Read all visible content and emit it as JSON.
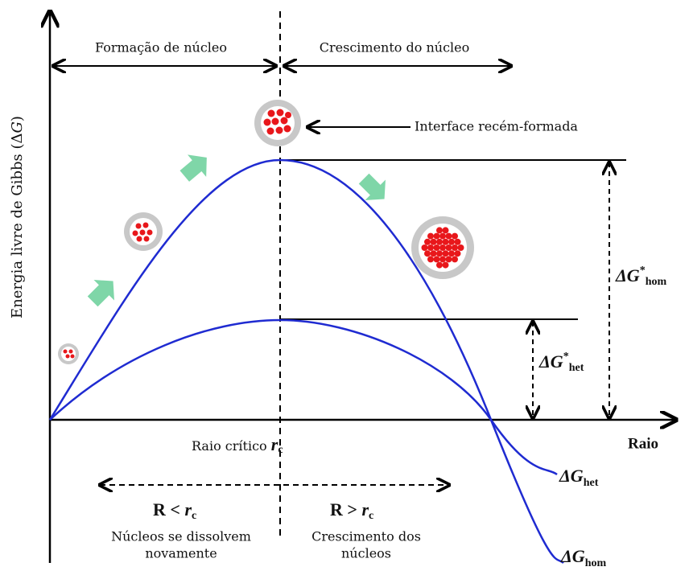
{
  "regions": {
    "left": "Formação de núcleo",
    "right": "Crescimento do núcleo"
  },
  "callout": "Interface recém-formada",
  "y_axis": {
    "label": "Energia livre de Gibbs (Δ",
    "symbol": "G",
    "close": ")"
  },
  "x_axis": {
    "label": "Raio"
  },
  "critical": {
    "label": "Raio crítico ",
    "symbol": "r",
    "sub": "c"
  },
  "barriers": [
    {
      "symbol": "ΔG",
      "sup": "*",
      "sub": "hom"
    },
    {
      "symbol": "ΔG",
      "sup": "*",
      "sub": "het"
    }
  ],
  "curves": [
    {
      "symbol": "ΔG",
      "sub": "het"
    },
    {
      "symbol": "ΔG",
      "sub": "hom"
    }
  ],
  "conditions": [
    {
      "relation": "R < ",
      "symbol": "r",
      "sub": "c",
      "lines": [
        "Núcleos se dissolvem",
        "novamente"
      ]
    },
    {
      "relation": "R > ",
      "symbol": "r",
      "sub": "c",
      "lines": [
        "Crescimento dos",
        "núcleos"
      ]
    }
  ]
}
